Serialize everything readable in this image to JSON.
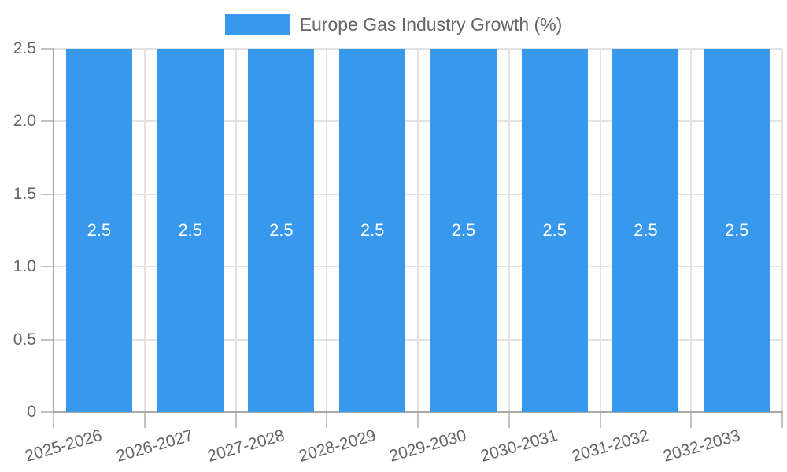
{
  "chart_data": {
    "type": "bar",
    "title": "Europe Gas Industry Growth (%)",
    "legend_position": "top",
    "categories": [
      "2025-2026",
      "2026-2027",
      "2027-2028",
      "2028-2029",
      "2029-2030",
      "2030-2031",
      "2031-2032",
      "2032-2033"
    ],
    "values": [
      2.5,
      2.5,
      2.5,
      2.5,
      2.5,
      2.5,
      2.5,
      2.5
    ],
    "bar_value_labels": [
      "2.5",
      "2.5",
      "2.5",
      "2.5",
      "2.5",
      "2.5",
      "2.5",
      "2.5"
    ],
    "xlabel": "",
    "ylabel": "",
    "ylim": [
      0,
      2.5
    ],
    "y_ticks": [
      {
        "value": 0,
        "label": "0"
      },
      {
        "value": 0.5,
        "label": "0.5"
      },
      {
        "value": 1.0,
        "label": "1.0"
      },
      {
        "value": 1.5,
        "label": "1.5"
      },
      {
        "value": 2.0,
        "label": "2.0"
      },
      {
        "value": 2.5,
        "label": "2.5"
      }
    ],
    "grid": true,
    "colors": {
      "bar": "#3898EC",
      "bar_label": "#FFFFFF",
      "axis": "#A8A8A8",
      "grid": "#E3E3E3",
      "tick_mark": "#C2C2C2",
      "text": "#666666"
    }
  }
}
